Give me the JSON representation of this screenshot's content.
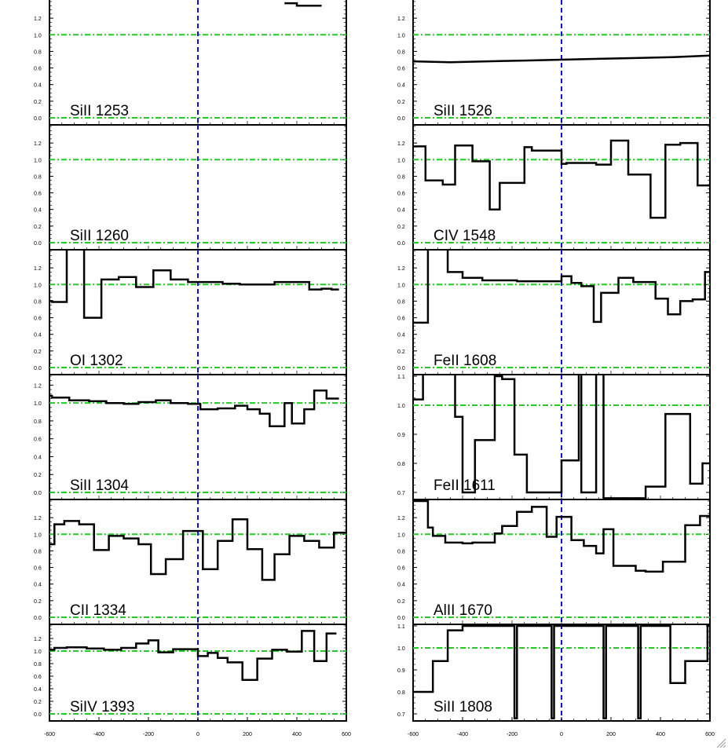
{
  "chart_data": {
    "type": "line",
    "layout": "stacked-panels",
    "xlim": [
      -600,
      600
    ],
    "x_tick_labels": [
      "-600",
      "-400",
      "-200",
      "0",
      "200",
      "400",
      "600"
    ],
    "x_ticks": [
      -600,
      -400,
      -200,
      0,
      200,
      400,
      600
    ],
    "reference_lines": {
      "unity_flux": 1.0,
      "zero_flux": 0.0,
      "zero_velocity": 0
    },
    "colors": {
      "spectrum": "#000000",
      "unity_line": "#22cc22",
      "zero_velocity_line": "#1010dd",
      "frame": "#000000"
    },
    "panels": [
      {
        "label": "SiII 1253",
        "column": "left",
        "row": 0,
        "ylim": [
          0,
          1.4
        ],
        "yticks": [
          0.0,
          0.2,
          0.4,
          0.6,
          0.8,
          1.0,
          1.2
        ],
        "ytick_labels": [
          "0.0",
          "0.2",
          "0.4",
          "0.6",
          "0.8",
          "1.0",
          "1.2"
        ],
        "step": true,
        "x": [
          350,
          400,
          400,
          500
        ],
        "y": [
          1.38,
          1.38,
          1.35,
          1.35
        ]
      },
      {
        "label": "SiII 1260",
        "column": "left",
        "row": 1,
        "ylim": [
          0,
          1.4
        ],
        "yticks": [
          0.0,
          0.2,
          0.4,
          0.6,
          0.8,
          1.0,
          1.2
        ],
        "ytick_labels": [
          "0.0",
          "0.2",
          "0.4",
          "0.6",
          "0.8",
          "1.0",
          "1.2"
        ],
        "step": true,
        "x": [],
        "y": []
      },
      {
        "label": "OI 1302",
        "column": "left",
        "row": 2,
        "ylim": [
          0,
          1.4
        ],
        "yticks": [
          0.0,
          0.2,
          0.4,
          0.6,
          0.8,
          1.0,
          1.2
        ],
        "ytick_labels": [
          "0.0",
          "0.2",
          "0.4",
          "0.6",
          "0.8",
          "1.0",
          "1.2"
        ],
        "step": true,
        "x": [
          -600,
          -590,
          -590,
          -530,
          -530,
          -460,
          -460,
          -390,
          -390,
          -320,
          -320,
          -250,
          -250,
          -180,
          -180,
          -110,
          -110,
          -40,
          -40,
          30,
          30,
          100,
          100,
          170,
          170,
          240,
          240,
          310,
          310,
          380,
          380,
          450,
          450,
          500,
          500,
          540,
          540,
          570
        ],
        "y": [
          0.8,
          0.8,
          0.79,
          0.79,
          1.45,
          1.45,
          0.6,
          0.6,
          1.06,
          1.06,
          1.09,
          1.09,
          0.97,
          0.97,
          1.17,
          1.17,
          1.06,
          1.06,
          1.03,
          1.03,
          1.03,
          1.03,
          1.01,
          1.01,
          1.0,
          1.0,
          1.0,
          1.0,
          1.03,
          1.03,
          1.03,
          1.03,
          0.94,
          0.94,
          0.95,
          0.95,
          0.94,
          0.94
        ]
      },
      {
        "label": "SiII 1304",
        "column": "left",
        "row": 3,
        "ylim": [
          0,
          1.3
        ],
        "yticks": [
          0.0,
          0.2,
          0.4,
          0.6,
          0.8,
          1.0,
          1.2
        ],
        "ytick_labels": [
          "0.0",
          "0.2",
          "0.4",
          "0.6",
          "0.8",
          "1.0",
          "1.2"
        ],
        "step": true,
        "x": [
          -600,
          -590,
          -590,
          -520,
          -520,
          -440,
          -440,
          -370,
          -370,
          -300,
          -300,
          -240,
          -240,
          -170,
          -170,
          -110,
          -110,
          -40,
          -40,
          10,
          10,
          80,
          80,
          150,
          150,
          200,
          200,
          250,
          250,
          290,
          290,
          350,
          350,
          380,
          380,
          430,
          430,
          470,
          470,
          520,
          520,
          570
        ],
        "y": [
          1.08,
          1.08,
          1.06,
          1.06,
          1.03,
          1.03,
          1.02,
          1.02,
          1.0,
          1.0,
          0.99,
          0.99,
          1.01,
          1.01,
          1.03,
          1.03,
          1.0,
          1.0,
          0.99,
          0.99,
          0.93,
          0.93,
          0.94,
          0.94,
          0.97,
          0.97,
          0.93,
          0.93,
          0.88,
          0.88,
          0.74,
          0.74,
          1.0,
          1.0,
          0.77,
          0.77,
          0.93,
          0.93,
          1.14,
          1.14,
          1.05,
          1.05
        ]
      },
      {
        "label": "CII 1334",
        "column": "left",
        "row": 4,
        "ylim": [
          0,
          1.4
        ],
        "yticks": [
          0.0,
          0.2,
          0.4,
          0.6,
          0.8,
          1.0,
          1.2
        ],
        "ytick_labels": [
          "0.0",
          "0.2",
          "0.4",
          "0.6",
          "0.8",
          "1.0",
          "1.2"
        ],
        "step": true,
        "x": [
          -600,
          -580,
          -580,
          -540,
          -540,
          -480,
          -480,
          -420,
          -420,
          -360,
          -360,
          -300,
          -300,
          -240,
          -240,
          -190,
          -190,
          -130,
          -130,
          -60,
          -60,
          -20,
          -20,
          20,
          20,
          80,
          80,
          140,
          140,
          200,
          200,
          260,
          260,
          310,
          310,
          370,
          370,
          430,
          430,
          490,
          490,
          550,
          550,
          600
        ],
        "y": [
          0.88,
          0.88,
          1.12,
          1.12,
          1.16,
          1.16,
          1.12,
          1.12,
          0.81,
          0.81,
          0.98,
          0.98,
          0.95,
          0.95,
          0.88,
          0.88,
          0.52,
          0.52,
          0.7,
          0.7,
          1.04,
          1.04,
          1.04,
          1.04,
          0.58,
          0.58,
          0.92,
          0.92,
          1.18,
          1.18,
          0.82,
          0.82,
          0.45,
          0.45,
          0.76,
          0.76,
          0.98,
          0.98,
          0.92,
          0.92,
          0.84,
          0.84,
          1.02,
          1.02
        ]
      },
      {
        "label": "SiIV 1393",
        "column": "left",
        "row": 5,
        "ylim": [
          0,
          1.4
        ],
        "yticks": [
          0.0,
          0.2,
          0.4,
          0.6,
          0.8,
          1.0,
          1.2
        ],
        "ytick_labels": [
          "0.0",
          "0.2",
          "0.4",
          "0.6",
          "0.8",
          "1.0",
          "1.2"
        ],
        "step": true,
        "x": [
          -600,
          -580,
          -580,
          -530,
          -530,
          -450,
          -450,
          -380,
          -380,
          -310,
          -310,
          -250,
          -250,
          -200,
          -200,
          -160,
          -160,
          -100,
          -100,
          -40,
          -40,
          0,
          0,
          40,
          40,
          80,
          80,
          120,
          120,
          180,
          180,
          240,
          240,
          300,
          300,
          360,
          360,
          420,
          420,
          470,
          470,
          520,
          520,
          560
        ],
        "y": [
          1.02,
          1.02,
          1.05,
          1.05,
          1.06,
          1.06,
          1.04,
          1.04,
          1.02,
          1.02,
          1.05,
          1.05,
          1.12,
          1.12,
          1.17,
          1.17,
          0.98,
          0.98,
          1.03,
          1.03,
          1.03,
          1.03,
          0.92,
          0.92,
          0.97,
          0.97,
          0.89,
          0.89,
          0.82,
          0.82,
          0.54,
          0.54,
          0.88,
          0.88,
          1.02,
          1.02,
          0.99,
          0.99,
          1.32,
          1.32,
          0.84,
          0.84,
          1.28,
          1.28
        ]
      },
      {
        "label": "SiII 1526",
        "column": "right",
        "row": 0,
        "ylim": [
          0,
          1.4
        ],
        "yticks": [
          0.0,
          0.2,
          0.4,
          0.6,
          0.8,
          1.0,
          1.2
        ],
        "ytick_labels": [
          "0.0",
          "0.2",
          "0.4",
          "0.6",
          "0.8",
          "1.0",
          "1.2"
        ],
        "step": false,
        "x": [
          -600,
          -450,
          -300,
          -150,
          0,
          150,
          300,
          450,
          600
        ],
        "y": [
          0.68,
          0.67,
          0.68,
          0.69,
          0.7,
          0.71,
          0.72,
          0.73,
          0.75
        ]
      },
      {
        "label": "CIV 1548",
        "column": "right",
        "row": 1,
        "ylim": [
          0,
          1.4
        ],
        "yticks": [
          0.0,
          0.2,
          0.4,
          0.6,
          0.8,
          1.0,
          1.2
        ],
        "ytick_labels": [
          "0.0",
          "0.2",
          "0.4",
          "0.6",
          "0.8",
          "1.0",
          "1.2"
        ],
        "step": true,
        "x": [
          -600,
          -560,
          -560,
          -550,
          -550,
          -480,
          -480,
          -430,
          -430,
          -360,
          -360,
          -290,
          -290,
          -250,
          -250,
          -180,
          -180,
          -150,
          -150,
          -120,
          -120,
          -50,
          -50,
          0,
          0,
          20,
          20,
          140,
          140,
          180,
          180,
          200,
          200,
          270,
          270,
          320,
          320,
          360,
          360,
          420,
          420,
          480,
          480,
          550,
          550,
          600
        ],
        "y": [
          1.16,
          1.16,
          1.16,
          1.16,
          0.75,
          0.75,
          0.7,
          0.7,
          1.17,
          1.17,
          0.98,
          0.98,
          0.4,
          0.4,
          0.72,
          0.72,
          0.72,
          0.72,
          1.15,
          1.15,
          1.11,
          1.11,
          1.11,
          1.11,
          0.95,
          0.95,
          0.96,
          0.96,
          0.94,
          0.94,
          0.94,
          0.94,
          1.23,
          1.23,
          0.82,
          0.82,
          0.82,
          0.82,
          0.3,
          0.3,
          1.18,
          1.18,
          1.2,
          1.2,
          0.69,
          0.69
        ]
      },
      {
        "label": "FeII 1608",
        "column": "right",
        "row": 2,
        "ylim": [
          0,
          1.4
        ],
        "yticks": [
          0.0,
          0.2,
          0.4,
          0.6,
          0.8,
          1.0,
          1.2
        ],
        "ytick_labels": [
          "0.0",
          "0.2",
          "0.4",
          "0.6",
          "0.8",
          "1.0",
          "1.2"
        ],
        "step": true,
        "x": [
          -600,
          -540,
          -540,
          -460,
          -460,
          -400,
          -400,
          -320,
          -320,
          -180,
          -180,
          0,
          0,
          40,
          40,
          80,
          80,
          130,
          130,
          160,
          160,
          230,
          230,
          290,
          290,
          380,
          380,
          430,
          430,
          480,
          480,
          530,
          530,
          580,
          580,
          600
        ],
        "y": [
          0.54,
          0.54,
          1.45,
          1.45,
          1.15,
          1.15,
          1.08,
          1.08,
          1.05,
          1.05,
          1.04,
          1.04,
          1.1,
          1.1,
          1.02,
          1.02,
          0.98,
          0.98,
          0.55,
          0.55,
          0.9,
          0.9,
          1.08,
          1.08,
          1.03,
          1.03,
          0.83,
          0.83,
          0.64,
          0.64,
          0.8,
          0.8,
          0.82,
          0.82,
          1.15,
          1.15
        ]
      },
      {
        "label": "FeII 1611",
        "column": "right",
        "row": 3,
        "ylim": [
          0.7,
          1.1
        ],
        "yticks": [
          0.7,
          0.8,
          0.9,
          1.0,
          1.1
        ],
        "ytick_labels": [
          "0.7",
          "0.8",
          "0.9",
          "1.0",
          "1.1"
        ],
        "step": true,
        "x": [
          -600,
          -560,
          -560,
          -520,
          -520,
          -430,
          -430,
          -400,
          -400,
          -350,
          -350,
          -300,
          -300,
          -270,
          -270,
          -240,
          -240,
          -190,
          -190,
          -140,
          -140,
          -80,
          -80,
          -40,
          -40,
          0,
          0,
          20,
          20,
          70,
          70,
          80,
          80,
          110,
          110,
          140,
          140,
          170,
          170,
          220,
          220,
          280,
          280,
          340,
          340,
          380,
          380,
          420,
          420,
          480,
          480,
          520,
          520,
          570,
          570,
          600
        ],
        "y": [
          1.02,
          1.02,
          1.12,
          1.12,
          1.12,
          1.12,
          0.96,
          0.96,
          0.7,
          0.7,
          0.88,
          0.88,
          0.88,
          0.88,
          1.1,
          1.1,
          1.09,
          1.09,
          0.83,
          0.83,
          0.7,
          0.7,
          0.7,
          0.7,
          0.7,
          0.7,
          0.81,
          0.81,
          0.81,
          0.81,
          1.12,
          1.12,
          0.7,
          0.7,
          0.7,
          0.7,
          1.12,
          1.12,
          0.68,
          0.68,
          0.68,
          0.68,
          0.68,
          0.68,
          0.72,
          0.72,
          0.72,
          0.72,
          0.97,
          0.97,
          0.97,
          0.97,
          0.73,
          0.73,
          0.8,
          0.8
        ]
      },
      {
        "label": "AlII 1670",
        "column": "right",
        "row": 4,
        "ylim": [
          0,
          1.4
        ],
        "yticks": [
          0.0,
          0.2,
          0.4,
          0.6,
          0.8,
          1.0,
          1.2
        ],
        "ytick_labels": [
          "0.0",
          "0.2",
          "0.4",
          "0.6",
          "0.8",
          "1.0",
          "1.2"
        ],
        "step": true,
        "x": [
          -600,
          -540,
          -540,
          -520,
          -520,
          -470,
          -470,
          -400,
          -400,
          -360,
          -360,
          -270,
          -270,
          -240,
          -240,
          -180,
          -180,
          -120,
          -120,
          -60,
          -60,
          -20,
          -20,
          40,
          40,
          90,
          90,
          140,
          140,
          170,
          170,
          210,
          210,
          300,
          300,
          340,
          340,
          410,
          410,
          440,
          440,
          500,
          500,
          560,
          560,
          600
        ],
        "y": [
          1.4,
          1.4,
          1.08,
          1.08,
          0.98,
          0.98,
          0.9,
          0.9,
          0.89,
          0.89,
          0.9,
          0.9,
          1.01,
          1.01,
          1.1,
          1.1,
          1.27,
          1.27,
          1.33,
          1.33,
          0.97,
          0.97,
          1.21,
          1.21,
          0.93,
          0.93,
          0.86,
          0.86,
          0.77,
          0.77,
          1.06,
          1.06,
          0.62,
          0.62,
          0.56,
          0.56,
          0.55,
          0.55,
          0.67,
          0.67,
          0.67,
          0.67,
          1.11,
          1.11,
          1.22,
          1.22
        ]
      },
      {
        "label": "SiII 1808",
        "column": "right",
        "row": 5,
        "ylim": [
          0.7,
          1.1
        ],
        "yticks": [
          0.7,
          0.8,
          0.9,
          1.0,
          1.1
        ],
        "ytick_labels": [
          "0.7",
          "0.8",
          "0.9",
          "1.0",
          "1.1"
        ],
        "step": true,
        "x": [
          -600,
          -520,
          -520,
          -460,
          -460,
          -400,
          -400,
          -190,
          -190,
          -180,
          -180,
          -40,
          -40,
          -30,
          -30,
          170,
          170,
          180,
          180,
          310,
          310,
          320,
          320,
          440,
          440,
          500,
          500,
          570,
          570,
          590,
          590,
          600
        ],
        "y": [
          0.8,
          0.8,
          0.94,
          0.94,
          1.08,
          1.08,
          1.1,
          1.1,
          0.68,
          0.68,
          1.1,
          1.1,
          0.68,
          0.68,
          1.1,
          1.1,
          0.68,
          0.68,
          1.1,
          1.1,
          0.68,
          0.68,
          1.1,
          1.1,
          0.84,
          0.84,
          0.94,
          0.94,
          0.94,
          0.94,
          1.1,
          1.1
        ]
      }
    ]
  }
}
